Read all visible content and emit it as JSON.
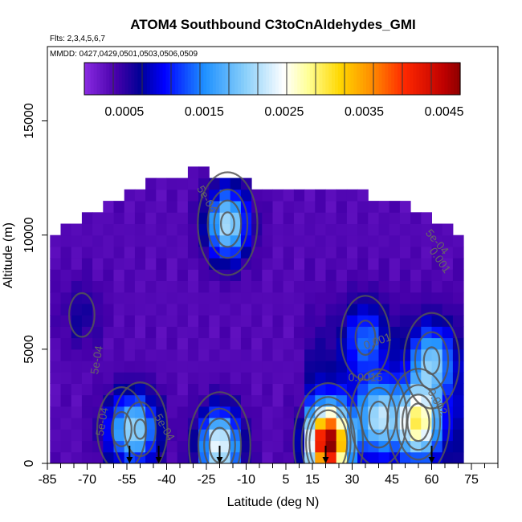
{
  "chart_data": {
    "type": "heatmap",
    "title": "ATOM4 Southbound C3toCnAldehydes_GMI",
    "flights_label": "Flts: 2,3,4,5,6,7",
    "dates_label": "MMDD: 0427,0429,0501,0503,0506,0509",
    "xlabel": "Latitude (deg N)",
    "ylabel": "Altitude (m)",
    "xlim": [
      -85,
      85
    ],
    "ylim": [
      0,
      17500
    ],
    "x_tick_labels": [
      "-85",
      "-70",
      "-55",
      "-40",
      "-25",
      "-10",
      "5",
      "15",
      "30",
      "45",
      "60",
      "75"
    ],
    "x_tick_values": [
      -85,
      -70,
      -55,
      -40,
      -25,
      -10,
      5,
      15,
      30,
      45,
      60,
      75
    ],
    "x_minor_step": 5,
    "y_tick_labels": [
      "0",
      "5000",
      "10000",
      "15000"
    ],
    "y_tick_values": [
      0,
      5000,
      10000,
      15000
    ],
    "colorbar": {
      "range": [
        0,
        0.0047
      ],
      "tick_labels": [
        "0.0005",
        "0.0015",
        "0.0025",
        "0.0035",
        "0.0045"
      ],
      "tick_values": [
        0.0005,
        0.0015,
        0.0025,
        0.0035,
        0.0045
      ],
      "divisions": 13,
      "colors": [
        "#8a2be2",
        "#00008b",
        "#0000ff",
        "#1e90ff",
        "#87cefa",
        "#ffffff",
        "#ffff99",
        "#ffd700",
        "#ffa500",
        "#ff4500",
        "#ff0000",
        "#b22222",
        "#8b0000"
      ]
    },
    "contour_labels": [
      "5e-04",
      "5e-04",
      "5e-04",
      "5e-04",
      "0.001",
      "0.0015",
      "0.002",
      "0.001",
      "5e-04"
    ],
    "contour_levels": [
      0.0005,
      0.001,
      0.0015,
      0.002
    ],
    "profile_markers_lat": [
      -54,
      -43,
      -20,
      20,
      60
    ],
    "data_extent": {
      "lat_bins": [
        -82,
        -78,
        -74,
        -70,
        -66,
        -62,
        -58,
        -54,
        -50,
        -46,
        -42,
        -38,
        -34,
        -30,
        -26,
        -22,
        -18,
        -14,
        -10,
        -6,
        -2,
        2,
        6,
        10,
        14,
        18,
        22,
        26,
        30,
        34,
        38,
        42,
        46,
        50,
        54,
        58,
        62,
        66,
        70
      ],
      "top_altitude": [
        9800,
        10300,
        10500,
        10800,
        11000,
        11300,
        11500,
        11800,
        12000,
        12300,
        12500,
        12500,
        12500,
        12600,
        12600,
        12500,
        12500,
        12500,
        12500,
        12000,
        12000,
        12000,
        12000,
        12000,
        12000,
        12000,
        12000,
        11800,
        11800,
        11600,
        11500,
        11500,
        11300,
        11300,
        11000,
        10800,
        10500,
        10200,
        10000
      ]
    },
    "concentration_field": [
      {
        "lat": -72,
        "alt": 6500,
        "value": 0.0006
      },
      {
        "lat": -57,
        "alt": 1500,
        "value": 0.0012
      },
      {
        "lat": -50,
        "alt": 1500,
        "value": 0.0016
      },
      {
        "lat": -20,
        "alt": 800,
        "value": 0.0025
      },
      {
        "lat": -17,
        "alt": 10500,
        "value": 0.0022
      },
      {
        "lat": 21,
        "alt": 900,
        "value": 0.0045
      },
      {
        "lat": 40,
        "alt": 2000,
        "value": 0.0018
      },
      {
        "lat": 55,
        "alt": 1800,
        "value": 0.0026
      },
      {
        "lat": 60,
        "alt": 4500,
        "value": 0.0017
      },
      {
        "lat": 35,
        "alt": 5500,
        "value": 0.0012
      }
    ],
    "grid": false,
    "legend": "top colorbar"
  }
}
